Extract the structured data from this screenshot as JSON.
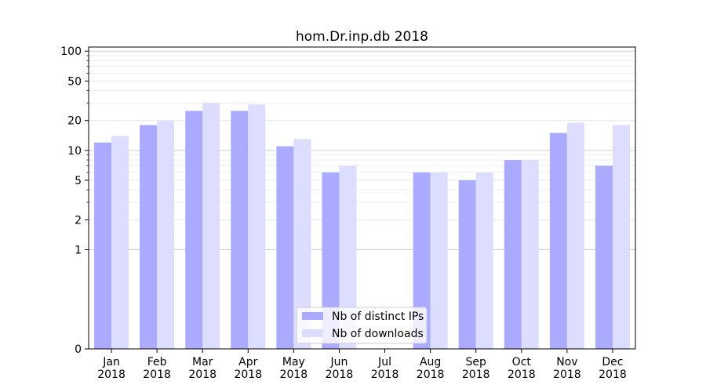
{
  "chart_data": {
    "type": "bar",
    "title": "hom.Dr.inp.db 2018",
    "xlabel": "",
    "ylabel": "",
    "y_scale": "symlog",
    "ylim": [
      0,
      110
    ],
    "y_ticks": [
      "0",
      "1",
      "2",
      "5",
      "10",
      "20",
      "50",
      "100"
    ],
    "grid": true,
    "legend_position": "bottom-center",
    "categories": [
      [
        "Jan",
        "2018"
      ],
      [
        "Feb",
        "2018"
      ],
      [
        "Mar",
        "2018"
      ],
      [
        "Apr",
        "2018"
      ],
      [
        "May",
        "2018"
      ],
      [
        "Jun",
        "2018"
      ],
      [
        "Jul",
        "2018"
      ],
      [
        "Aug",
        "2018"
      ],
      [
        "Sep",
        "2018"
      ],
      [
        "Oct",
        "2018"
      ],
      [
        "Nov",
        "2018"
      ],
      [
        "Dec",
        "2018"
      ]
    ],
    "series": [
      {
        "name": "Nb of distinct IPs",
        "color": "#aaaaff",
        "values": [
          12,
          18,
          25,
          25,
          11,
          6,
          0,
          6,
          5,
          8,
          15,
          7
        ]
      },
      {
        "name": "Nb of downloads",
        "color": "#ddddff",
        "values": [
          14,
          20,
          30,
          29,
          13,
          7,
          0,
          6,
          6,
          8,
          19,
          18
        ]
      }
    ]
  }
}
